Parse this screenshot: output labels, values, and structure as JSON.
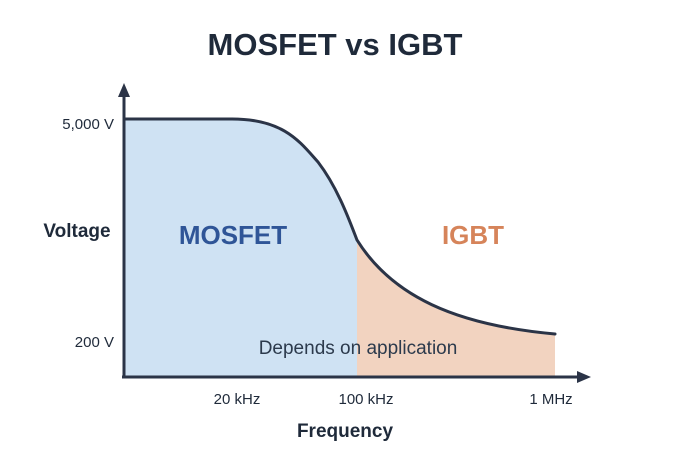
{
  "chart_data": {
    "type": "area",
    "title": "MOSFET vs IGBT",
    "xlabel": "Frequency",
    "ylabel": "Voltage",
    "x_ticks": [
      "20 kHz",
      "100 kHz",
      "1 MHz"
    ],
    "y_ticks": [
      "5,000 V",
      "200 V"
    ],
    "grid": false,
    "regions": [
      {
        "label": "MOSFET",
        "color": "#cfe2f3",
        "label_color": "#2f5597"
      },
      {
        "label": "IGBT",
        "color": "#f2d3c0",
        "label_color": "#d6845a"
      }
    ],
    "annotation": "Depends on application",
    "colors": {
      "curve": "#2b3447",
      "axis": "#2b3447"
    }
  }
}
